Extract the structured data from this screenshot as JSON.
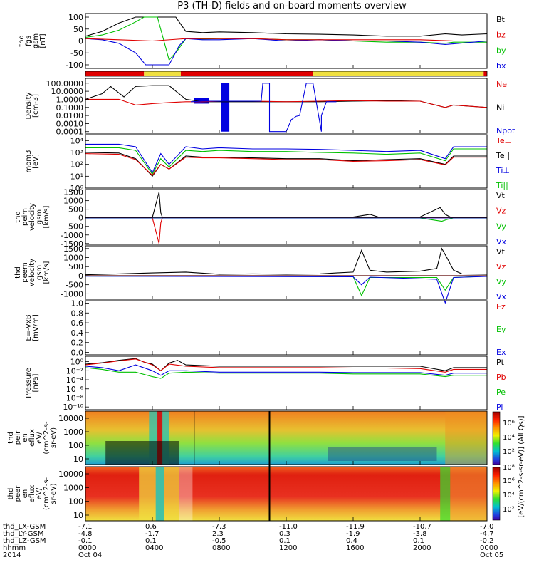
{
  "title": "P3 (TH-D) fields and on-board moments overview",
  "colors": {
    "black": "#000000",
    "red": "#e00000",
    "green": "#00c000",
    "blue": "#0000e0",
    "yellow": "#f0e040"
  },
  "panels": [
    {
      "id": "fgs",
      "ylabel": [
        "thd",
        "fgs",
        "gsm",
        "[nT]"
      ],
      "yticks": [
        "100",
        "50",
        "0",
        "-50",
        "-100"
      ],
      "legend": [
        {
          "text": "Bt",
          "color": "black"
        },
        {
          "text": "bz",
          "color": "red"
        },
        {
          "text": "by",
          "color": "green"
        },
        {
          "text": "bx",
          "color": "blue"
        }
      ]
    },
    {
      "id": "density",
      "ylabel": [
        "Density",
        "[cm-3]"
      ],
      "yticks": [
        "100.0000",
        "10.0000",
        "1.0000",
        "0.1000",
        "0.0100",
        "0.0010",
        "0.0001"
      ],
      "legend": [
        {
          "text": "Ne",
          "color": "red"
        },
        {
          "text": "Ni",
          "color": "black"
        },
        {
          "text": "Npot",
          "color": "blue"
        }
      ]
    },
    {
      "id": "temp",
      "ylabel": [
        "mom3",
        "[eV]"
      ],
      "yticks": [
        "10⁴",
        "10³",
        "10²",
        "10¹",
        "10⁰"
      ],
      "legend": [
        {
          "text": "Te⊥",
          "color": "red"
        },
        {
          "text": "Te||",
          "color": "black"
        },
        {
          "text": "Ti⊥",
          "color": "blue"
        },
        {
          "text": "Ti||",
          "color": "green"
        }
      ]
    },
    {
      "id": "vi",
      "ylabel": [
        "thd",
        "peim",
        "velocity",
        "gsm",
        "[km/s]"
      ],
      "yticks": [
        "1500",
        "1000",
        "500",
        "0",
        "-500",
        "-1000",
        "-1500"
      ],
      "legend": [
        {
          "text": "Vt",
          "color": "black"
        },
        {
          "text": "Vz",
          "color": "red"
        },
        {
          "text": "Vy",
          "color": "green"
        },
        {
          "text": "Vx",
          "color": "blue"
        }
      ]
    },
    {
      "id": "ve",
      "ylabel": [
        "thd",
        "peem",
        "velocity",
        "gsm",
        "[km/s]"
      ],
      "yticks": [
        "1500",
        "1000",
        "500",
        "0",
        "-500",
        "-1000"
      ],
      "legend": [
        {
          "text": "Vt",
          "color": "black"
        },
        {
          "text": "Vz",
          "color": "red"
        },
        {
          "text": "Vy",
          "color": "green"
        },
        {
          "text": "Vx",
          "color": "blue"
        }
      ]
    },
    {
      "id": "efield",
      "ylabel": [
        "E=-VxB",
        "[mV/m]"
      ],
      "yticks": [
        "1.0",
        "0.8",
        "0.6",
        "0.4",
        "0.2",
        "0.0"
      ],
      "legend": [
        {
          "text": "Ez",
          "color": "red"
        },
        {
          "text": "Ey",
          "color": "green"
        },
        {
          "text": "Ex",
          "color": "blue"
        }
      ]
    },
    {
      "id": "pressure",
      "ylabel": [
        "Pressure",
        "[nPa]"
      ],
      "yticks": [
        "10⁰",
        "10⁻²",
        "10⁻⁴",
        "10⁻⁶",
        "10⁻⁸",
        "10⁻¹⁰"
      ],
      "legend": [
        {
          "text": "Pt",
          "color": "black"
        },
        {
          "text": "Pb",
          "color": "red"
        },
        {
          "text": "Pe",
          "color": "green"
        },
        {
          "text": "Pi",
          "color": "blue"
        }
      ]
    },
    {
      "id": "ion_spec",
      "ylabel": [
        "thd",
        "peir",
        "en",
        "eflux",
        "eV/",
        "(cm^2-s-",
        "sr-eV)"
      ],
      "yticks": [
        "10000",
        "1000",
        "100",
        "10"
      ],
      "legend": []
    },
    {
      "id": "elec_spec",
      "ylabel": [
        "thd",
        "peer",
        "en",
        "eflux",
        "eV/",
        "(cm^2-s-",
        "sr-eV)"
      ],
      "yticks": [
        "10000",
        "1000",
        "100",
        "10"
      ],
      "legend": []
    }
  ],
  "colorbar": {
    "ticks": [
      "10⁶",
      "10⁴",
      "10²",
      "10⁸",
      "10⁶",
      "10⁴",
      "10²"
    ],
    "label": "[eV/(cm^2-s-sr-eV)] (All Qs)]"
  },
  "footer": {
    "row_labels": [
      "thd_LX-GSM",
      "thd_LY-GSM",
      "thd_LZ-GSM",
      "hhmm",
      "2014"
    ],
    "cols": [
      {
        "lx": "-7.1",
        "ly": "-4.8",
        "lz": "-0.1",
        "hhmm": "0000",
        "date": "Oct 04"
      },
      {
        "lx": "0.6",
        "ly": "-1.7",
        "lz": "0.1",
        "hhmm": "0400",
        "date": ""
      },
      {
        "lx": "-7.3",
        "ly": "2.3",
        "lz": "-0.5",
        "hhmm": "0800",
        "date": ""
      },
      {
        "lx": "-11.0",
        "ly": "0.3",
        "lz": "0.1",
        "hhmm": "1200",
        "date": ""
      },
      {
        "lx": "-11.9",
        "ly": "-1.9",
        "lz": "0.4",
        "hhmm": "1600",
        "date": ""
      },
      {
        "lx": "-10.7",
        "ly": "-3.8",
        "lz": "0.1",
        "hhmm": "2000",
        "date": ""
      },
      {
        "lx": "-7.0",
        "ly": "-4.7",
        "lz": "-0.2",
        "hhmm": "0000",
        "date": "Oct 05"
      }
    ]
  },
  "chart_data": {
    "type": "line",
    "x_ticks": [
      "0000",
      "0400",
      "0800",
      "1200",
      "1600",
      "2000",
      "0000"
    ],
    "mode_bar": [
      {
        "from": 0.0,
        "to": 3.5,
        "color": "red"
      },
      {
        "from": 3.5,
        "to": 5.7,
        "color": "yellow"
      },
      {
        "from": 5.7,
        "to": 13.6,
        "color": "red"
      },
      {
        "from": 13.6,
        "to": 23.8,
        "color": "yellow"
      },
      {
        "from": 23.8,
        "to": 24.0,
        "color": "red"
      }
    ],
    "series": [
      {
        "panel": "fgs",
        "color": "black",
        "x": [
          0,
          1,
          2,
          3,
          3.6,
          4.3,
          5.4,
          6,
          7,
          8,
          10,
          12,
          14,
          16,
          18,
          20,
          21.5,
          22.5,
          24
        ],
        "y": [
          20,
          40,
          75,
          100,
          100,
          100,
          100,
          40,
          35,
          38,
          35,
          30,
          28,
          25,
          20,
          20,
          30,
          25,
          30
        ]
      },
      {
        "panel": "fgs",
        "color": "green",
        "x": [
          0,
          1,
          2,
          3,
          3.5,
          4.3,
          5,
          5.5,
          6,
          7,
          8,
          10,
          12,
          14,
          16,
          18,
          20,
          21.5,
          22,
          24
        ],
        "y": [
          15,
          25,
          45,
          80,
          100,
          100,
          -80,
          -40,
          10,
          8,
          10,
          10,
          5,
          5,
          0,
          -5,
          -5,
          -10,
          -5,
          -5
        ]
      },
      {
        "panel": "fgs",
        "color": "blue",
        "x": [
          0,
          1,
          2,
          3,
          3.6,
          4.3,
          5,
          5.6,
          6,
          7,
          8,
          10,
          12,
          14,
          16,
          18,
          20,
          21.5,
          24
        ],
        "y": [
          10,
          5,
          -10,
          -50,
          -100,
          -100,
          -100,
          -20,
          10,
          5,
          5,
          10,
          0,
          5,
          0,
          0,
          -5,
          -15,
          0
        ]
      },
      {
        "panel": "fgs",
        "color": "red",
        "x": [
          0,
          2,
          4,
          6,
          8,
          10,
          12,
          14,
          16,
          18,
          20,
          22,
          24
        ],
        "y": [
          10,
          5,
          0,
          10,
          10,
          10,
          5,
          5,
          5,
          5,
          5,
          0,
          0
        ]
      },
      {
        "panel": "density",
        "color": "black",
        "x": [
          0,
          1,
          1.5,
          2.3,
          3,
          4,
          5,
          6,
          7,
          8,
          10,
          12,
          14,
          16,
          18,
          20,
          21.5,
          22,
          24
        ],
        "y": [
          1,
          5,
          40,
          2,
          40,
          50,
          50,
          1,
          0.5,
          0.5,
          0.5,
          0.5,
          0.5,
          0.6,
          0.7,
          0.6,
          0.1,
          0.2,
          0.1
        ]
      },
      {
        "panel": "density",
        "color": "red",
        "x": [
          0,
          1,
          2,
          3,
          4,
          5,
          6,
          7,
          8,
          10,
          12,
          14,
          16,
          18,
          20,
          21.5,
          22,
          24
        ],
        "y": [
          1,
          1,
          1,
          0.2,
          0.3,
          0.4,
          0.5,
          0.5,
          0.6,
          0.6,
          0.5,
          0.6,
          0.7,
          0.6,
          0.6,
          0.1,
          0.2,
          0.1
        ]
      },
      {
        "panel": "density",
        "color": "blue",
        "x": [
          6.3,
          7,
          8,
          10.5,
          10.6,
          11,
          11,
          12,
          12.3,
          12.6,
          12.8,
          13.2,
          13.6,
          14.1,
          14.1,
          14.4,
          15
        ],
        "y": [
          0.5,
          0.6,
          0.6,
          0.6,
          100,
          100,
          0.0001,
          0.0001,
          0.003,
          0.008,
          0.01,
          100,
          100,
          0.0001,
          0.01,
          0.5,
          0.5
        ]
      },
      {
        "panel": "temp",
        "color": "blue",
        "x": [
          0,
          2,
          3,
          4,
          4.5,
          5,
          6,
          7,
          8,
          10,
          12,
          14,
          16,
          18,
          20,
          21.5,
          22,
          24
        ],
        "y": [
          5000,
          5000,
          3000,
          20,
          800,
          100,
          3000,
          2000,
          2500,
          2000,
          2000,
          1800,
          1500,
          1200,
          1500,
          300,
          3000,
          3000
        ]
      },
      {
        "panel": "temp",
        "color": "green",
        "x": [
          0,
          2,
          3,
          4,
          4.5,
          5,
          6,
          7,
          8,
          10,
          12,
          14,
          16,
          18,
          20,
          21.5,
          22,
          24
        ],
        "y": [
          2500,
          2500,
          1500,
          15,
          300,
          60,
          1500,
          1200,
          1500,
          1200,
          1200,
          1000,
          900,
          700,
          900,
          200,
          2000,
          2000
        ]
      },
      {
        "panel": "temp",
        "color": "black",
        "x": [
          0,
          2,
          3,
          4,
          4.5,
          5,
          6,
          7,
          8,
          10,
          12,
          14,
          16,
          18,
          20,
          21.5,
          22,
          24
        ],
        "y": [
          1000,
          900,
          300,
          10,
          100,
          40,
          500,
          400,
          400,
          350,
          300,
          300,
          200,
          250,
          300,
          100,
          500,
          500
        ]
      },
      {
        "panel": "temp",
        "color": "red",
        "x": [
          0,
          2,
          3,
          4,
          4.5,
          5,
          6,
          7,
          8,
          10,
          12,
          14,
          16,
          18,
          20,
          21.5,
          22,
          24
        ],
        "y": [
          800,
          700,
          250,
          12,
          100,
          40,
          400,
          350,
          350,
          300,
          250,
          250,
          180,
          200,
          250,
          90,
          400,
          400
        ]
      },
      {
        "panel": "vi",
        "color": "black",
        "x": [
          0,
          4,
          4.4,
          4.5,
          4.6,
          5,
          12,
          16,
          17,
          17.5,
          18,
          20,
          21.2,
          21.5,
          21.8,
          22,
          24
        ],
        "y": [
          20,
          20,
          1500,
          300,
          20,
          20,
          50,
          50,
          200,
          50,
          50,
          50,
          600,
          200,
          50,
          30,
          30
        ]
      },
      {
        "panel": "vi",
        "color": "red",
        "x": [
          0,
          4,
          4.4,
          4.5,
          4.6,
          5,
          24
        ],
        "y": [
          0,
          0,
          -1500,
          -300,
          0,
          0,
          0
        ]
      },
      {
        "panel": "vi",
        "color": "green",
        "x": [
          0,
          20,
          21.3,
          21.6,
          22,
          24
        ],
        "y": [
          -10,
          -10,
          -200,
          -100,
          -10,
          -10
        ]
      },
      {
        "panel": "vi",
        "color": "blue",
        "x": [
          0,
          24
        ],
        "y": [
          -5,
          -5
        ]
      },
      {
        "panel": "ve",
        "color": "black",
        "x": [
          0,
          2,
          4,
          6,
          8,
          10,
          12,
          14,
          15,
          16,
          16.5,
          17,
          18,
          20,
          21,
          21.3,
          21.6,
          22,
          22.5,
          24
        ],
        "y": [
          50,
          100,
          150,
          200,
          80,
          100,
          80,
          100,
          150,
          200,
          1400,
          300,
          200,
          250,
          400,
          1500,
          1000,
          300,
          100,
          80
        ]
      },
      {
        "panel": "ve",
        "color": "green",
        "x": [
          0,
          16,
          16.5,
          17,
          21,
          21.5,
          22,
          24
        ],
        "y": [
          -20,
          -50,
          -1100,
          -100,
          -100,
          -800,
          -100,
          -30
        ]
      },
      {
        "panel": "ve",
        "color": "blue",
        "x": [
          0,
          16,
          16.5,
          17,
          21,
          21.5,
          22,
          24
        ],
        "y": [
          -30,
          -60,
          -500,
          -80,
          -200,
          -1500,
          -100,
          -40
        ]
      },
      {
        "panel": "ve",
        "color": "red",
        "x": [
          0,
          24
        ],
        "y": [
          0,
          0
        ]
      },
      {
        "panel": "pressure",
        "color": "black",
        "x": [
          0,
          1,
          2,
          3,
          3.5,
          4,
          4.5,
          5,
          5.5,
          6,
          8,
          10,
          12,
          14,
          16,
          18,
          20,
          21.5,
          22,
          24
        ],
        "y": [
          0.3,
          0.6,
          2,
          5,
          0.8,
          0.3,
          0.01,
          0.5,
          2,
          0.2,
          0.1,
          0.1,
          0.1,
          0.1,
          0.1,
          0.1,
          0.1,
          0.01,
          0.05,
          0.05
        ]
      },
      {
        "panel": "pressure",
        "color": "red",
        "x": [
          0,
          1,
          2,
          3,
          4,
          4.5,
          5,
          6,
          8,
          10,
          12,
          14,
          16,
          18,
          20,
          21.5,
          22,
          24
        ],
        "y": [
          0.2,
          0.5,
          1.5,
          4,
          0.2,
          0.01,
          0.3,
          0.1,
          0.05,
          0.05,
          0.05,
          0.05,
          0.04,
          0.04,
          0.03,
          0.005,
          0.02,
          0.02
        ]
      },
      {
        "panel": "pressure",
        "color": "blue",
        "x": [
          0,
          1,
          2,
          3,
          4,
          4.5,
          5,
          6,
          8,
          10,
          12,
          14,
          16,
          18,
          20,
          21.5,
          22,
          24
        ],
        "y": [
          0.1,
          0.05,
          0.01,
          0.2,
          0.01,
          0.001,
          0.01,
          0.01,
          0.005,
          0.005,
          0.005,
          0.005,
          0.004,
          0.004,
          0.004,
          0.001,
          0.003,
          0.003
        ]
      },
      {
        "panel": "pressure",
        "color": "green",
        "x": [
          0,
          1,
          2,
          3,
          4,
          4.5,
          5,
          6,
          8,
          10,
          12,
          14,
          16,
          18,
          20,
          21.5,
          22,
          24
        ],
        "y": [
          0.05,
          0.02,
          0.005,
          0.005,
          0.0005,
          0.0002,
          0.003,
          0.005,
          0.003,
          0.003,
          0.003,
          0.003,
          0.002,
          0.002,
          0.002,
          0.0005,
          0.001,
          0.001
        ]
      }
    ]
  }
}
